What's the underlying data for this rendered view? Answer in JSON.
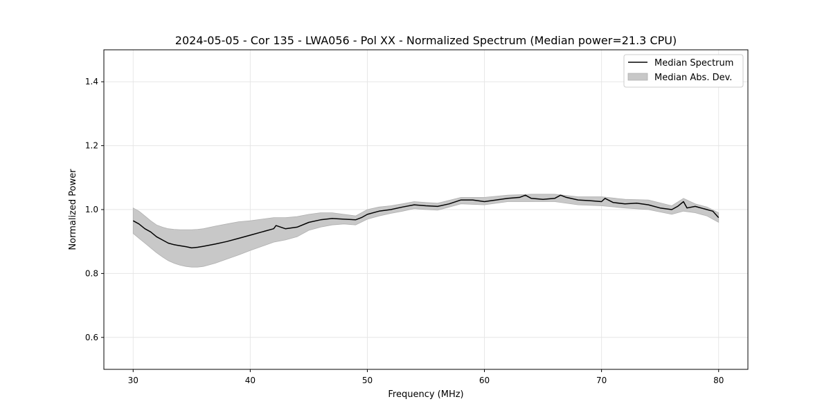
{
  "chart_data": {
    "type": "area",
    "title": "2024-05-05 - Cor 135 - LWA056 - Pol XX - Normalized Spectrum (Median power=21.3 CPU)",
    "xlabel": "Frequency (MHz)",
    "ylabel": "Normalized Power",
    "xlim": [
      27.5,
      82.5
    ],
    "ylim": [
      0.5,
      1.5
    ],
    "xticks": [
      30,
      40,
      50,
      60,
      70,
      80
    ],
    "yticks": [
      0.6,
      0.8,
      1.0,
      1.2,
      1.4
    ],
    "xtick_labels": [
      "30",
      "40",
      "50",
      "60",
      "70",
      "80"
    ],
    "ytick_labels": [
      "0.6",
      "0.8",
      "1.0",
      "1.2",
      "1.4"
    ],
    "grid": true,
    "legend_position": "top-right",
    "line_color": "#000000",
    "band_color": "#c8c8c8",
    "series": [
      {
        "name": "Median Spectrum",
        "legend_label": "Median Spectrum",
        "x": [
          30,
          30.5,
          31,
          31.5,
          32,
          32.5,
          33,
          33.5,
          34,
          34.5,
          35,
          35.5,
          36,
          37,
          38,
          39,
          40,
          41,
          42,
          42.2,
          43,
          44,
          45,
          46,
          47,
          48,
          49,
          49.5,
          50,
          51,
          52,
          53,
          54,
          55,
          56,
          57,
          58,
          59,
          60,
          61,
          62,
          63,
          63.5,
          64,
          65,
          66,
          66.5,
          67,
          68,
          69,
          70,
          70.3,
          71,
          72,
          73,
          74,
          75,
          76,
          76.5,
          77,
          77.3,
          78,
          79,
          79.5,
          80
        ],
        "y": [
          0.965,
          0.955,
          0.94,
          0.93,
          0.915,
          0.905,
          0.895,
          0.89,
          0.887,
          0.884,
          0.88,
          0.882,
          0.885,
          0.892,
          0.9,
          0.91,
          0.92,
          0.93,
          0.94,
          0.95,
          0.94,
          0.945,
          0.96,
          0.968,
          0.972,
          0.97,
          0.968,
          0.975,
          0.985,
          0.995,
          1.0,
          1.008,
          1.015,
          1.012,
          1.01,
          1.018,
          1.03,
          1.03,
          1.025,
          1.03,
          1.035,
          1.038,
          1.045,
          1.035,
          1.032,
          1.035,
          1.045,
          1.038,
          1.03,
          1.028,
          1.025,
          1.035,
          1.022,
          1.018,
          1.02,
          1.015,
          1.005,
          1.0,
          1.01,
          1.025,
          1.005,
          1.01,
          1.0,
          0.995,
          0.975
        ]
      },
      {
        "name": "Median Abs. Dev.",
        "legend_label": "Median Abs. Dev.",
        "x": [
          30,
          30.5,
          31,
          31.5,
          32,
          32.5,
          33,
          33.5,
          34,
          34.5,
          35,
          35.5,
          36,
          37,
          38,
          39,
          40,
          41,
          42,
          43,
          44,
          45,
          46,
          47,
          48,
          49,
          50,
          51,
          52,
          53,
          54,
          55,
          56,
          58,
          60,
          62,
          64,
          66,
          68,
          70,
          72,
          74,
          76,
          77,
          78,
          79,
          80
        ],
        "upper": [
          1.005,
          0.995,
          0.98,
          0.965,
          0.952,
          0.945,
          0.94,
          0.938,
          0.937,
          0.937,
          0.937,
          0.938,
          0.94,
          0.948,
          0.955,
          0.962,
          0.965,
          0.97,
          0.975,
          0.975,
          0.978,
          0.985,
          0.99,
          0.99,
          0.985,
          0.98,
          1.0,
          1.008,
          1.012,
          1.018,
          1.025,
          1.022,
          1.02,
          1.038,
          1.038,
          1.045,
          1.048,
          1.048,
          1.04,
          1.04,
          1.032,
          1.03,
          1.012,
          1.035,
          1.018,
          1.008,
          0.99
        ],
        "lower": [
          0.925,
          0.91,
          0.895,
          0.88,
          0.865,
          0.852,
          0.84,
          0.832,
          0.826,
          0.822,
          0.82,
          0.82,
          0.822,
          0.832,
          0.845,
          0.858,
          0.872,
          0.885,
          0.898,
          0.905,
          0.915,
          0.935,
          0.945,
          0.952,
          0.955,
          0.952,
          0.97,
          0.98,
          0.988,
          0.995,
          1.003,
          1.0,
          0.998,
          1.018,
          1.015,
          1.025,
          1.025,
          1.025,
          1.015,
          1.012,
          1.005,
          1.0,
          0.985,
          0.995,
          0.99,
          0.98,
          0.96
        ]
      }
    ]
  }
}
